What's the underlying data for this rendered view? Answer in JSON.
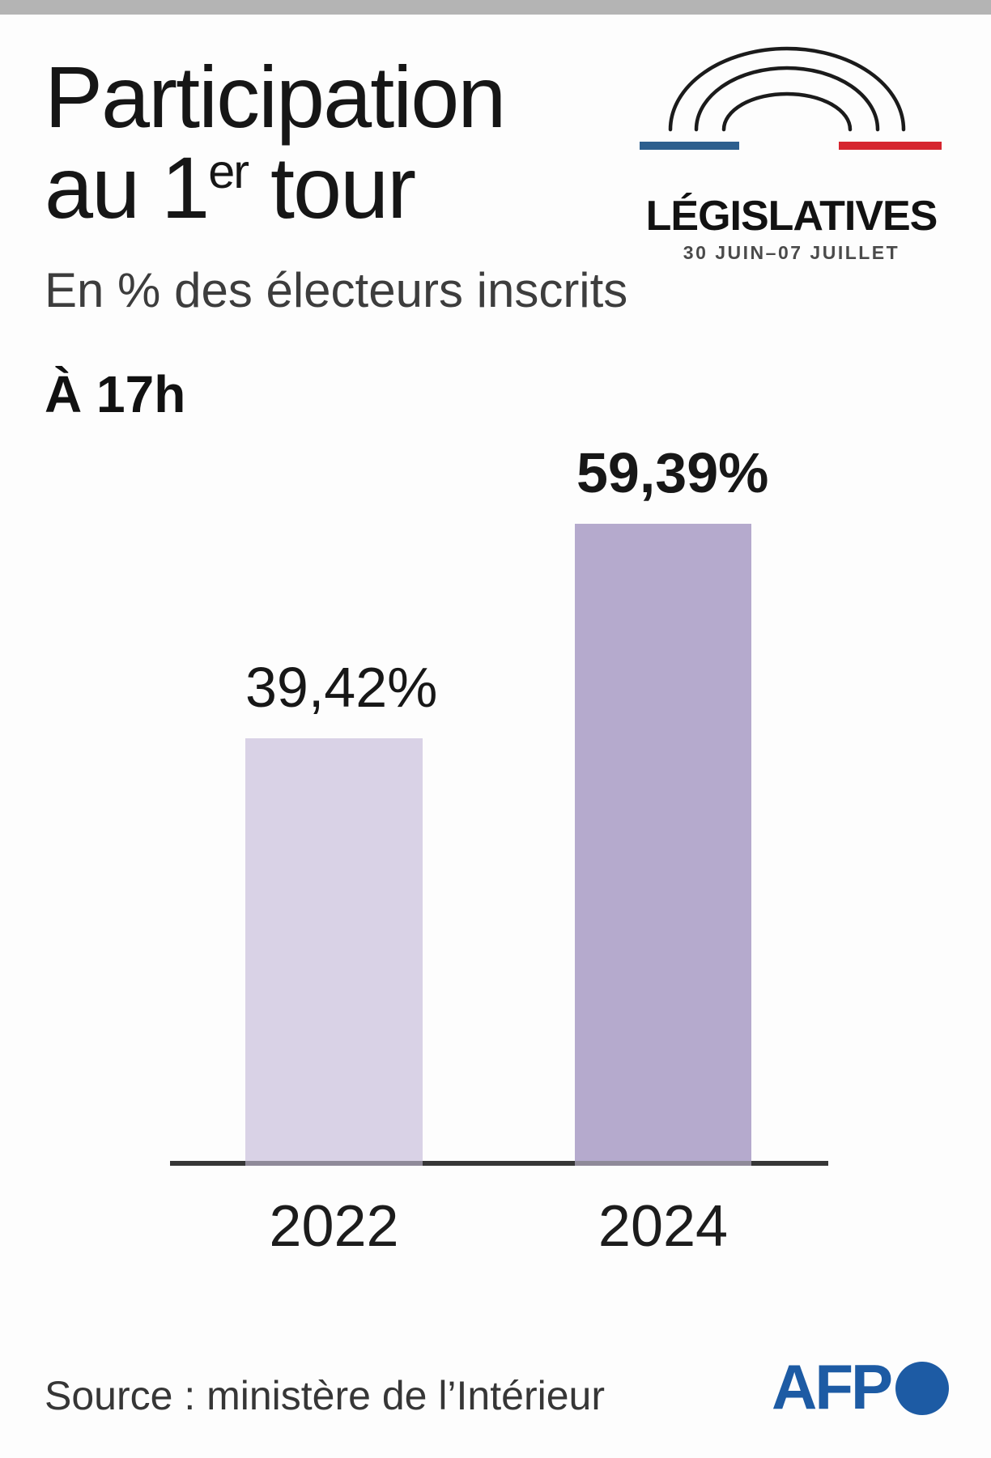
{
  "page": {
    "top_bar_color": "#b4b4b4",
    "background": "#fdfdfd"
  },
  "header": {
    "title_line1": "Participation",
    "title_line2": {
      "prefix": "au 1",
      "sup": "er",
      "suffix": " tour"
    },
    "subtitle": "En % des électeurs inscrits",
    "time_label": "À 17h"
  },
  "election_logo": {
    "title": "LÉGISLATIVES",
    "dates": "30 JUIN–07 JUILLET",
    "arc_color": "#1b1b1b",
    "blue_bar_color": "#2d5f8e",
    "red_bar_color": "#d6252f",
    "dates_color": "#4a4a4a"
  },
  "chart_data": {
    "type": "bar",
    "title": "Participation au 1er tour",
    "subtitle": "En % des électeurs inscrits",
    "annotation": "À 17h",
    "categories": [
      "2022",
      "2024"
    ],
    "values": [
      39.42,
      59.39
    ],
    "value_labels": [
      "39,42%",
      "59,39%"
    ],
    "bar_colors": [
      "#d9d2e6",
      "#b5aacd"
    ],
    "unit": "% des électeurs inscrits",
    "ylim": [
      0,
      60
    ],
    "grid": false,
    "legend": false,
    "axis_line_color": "#363636",
    "axis_under_bar_color": "#8f8a99"
  },
  "footer": {
    "source": "Source : ministère de l’Intérieur",
    "afp_label": "AFP",
    "afp_color": "#1d5ba4"
  }
}
